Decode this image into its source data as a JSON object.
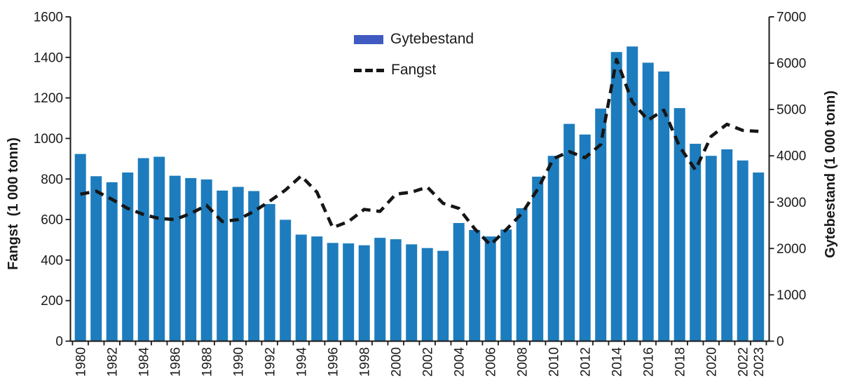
{
  "figure": {
    "background": "#ffffff",
    "axis_color": "#1a1a1a",
    "text_color": "#1a1a1a"
  },
  "chart_data": {
    "type": "bar+line",
    "title": "",
    "grid": false,
    "x": [
      1980,
      1981,
      1982,
      1983,
      1984,
      1985,
      1986,
      1987,
      1988,
      1989,
      1990,
      1991,
      1992,
      1993,
      1994,
      1995,
      1996,
      1997,
      1998,
      1999,
      2000,
      2001,
      2002,
      2003,
      2004,
      2005,
      2006,
      2007,
      2008,
      2009,
      2010,
      2011,
      2012,
      2013,
      2014,
      2015,
      2016,
      2017,
      2018,
      2019,
      2020,
      2021,
      2022,
      2023
    ],
    "series": [
      {
        "name": "Gytebestand",
        "type": "bar",
        "axis": "right",
        "color": "#1d7cbd",
        "values": [
          4040,
          3560,
          3430,
          3640,
          3950,
          3980,
          3570,
          3520,
          3490,
          3250,
          3330,
          3240,
          2960,
          2620,
          2300,
          2260,
          2120,
          2110,
          2070,
          2230,
          2200,
          2090,
          2010,
          1950,
          2550,
          2400,
          2260,
          2410,
          2870,
          3550,
          4000,
          4690,
          4460,
          5020,
          6240,
          6360,
          6010,
          5820,
          5030,
          4260,
          4000,
          4140,
          3900,
          3640
        ]
      },
      {
        "name": "Fangst",
        "type": "line",
        "style": "dashed",
        "axis": "left",
        "color": "#161616",
        "values": [
          725,
          740,
          700,
          655,
          625,
          605,
          600,
          630,
          670,
          590,
          600,
          640,
          690,
          745,
          815,
          735,
          560,
          590,
          650,
          640,
          725,
          735,
          760,
          680,
          655,
          555,
          475,
          550,
          630,
          750,
          900,
          935,
          905,
          970,
          1390,
          1180,
          1090,
          1140,
          960,
          845,
          1010,
          1070,
          1040,
          1035
        ]
      }
    ],
    "left_axis": {
      "title": "Fangst  (1 000 tonn)",
      "min": 0,
      "max": 1600,
      "tick_step": 200,
      "tick_labels": [
        "0",
        "200",
        "400",
        "600",
        "800",
        "1000",
        "1200",
        "1400",
        "1600"
      ]
    },
    "right_axis": {
      "title": "Gytebestand (1 000 tonn)",
      "min": 0,
      "max": 7000,
      "tick_step": 1000,
      "tick_labels": [
        "0",
        "1000",
        "2000",
        "3000",
        "4000",
        "5000",
        "6000",
        "7000"
      ]
    },
    "x_axis": {
      "labeled_years": [
        1980,
        1982,
        1984,
        1986,
        1988,
        1990,
        1992,
        1994,
        1996,
        1998,
        2000,
        2002,
        2004,
        2006,
        2008,
        2010,
        2012,
        2014,
        2016,
        2018,
        2020,
        2022,
        2023
      ]
    },
    "legend": {
      "position": "top-center",
      "entries": [
        {
          "label": "Gytebestand",
          "type": "bar",
          "swatch_color": "#3f5bc1"
        },
        {
          "label": "Fangst",
          "type": "dashed-line",
          "swatch_color": "#161616"
        }
      ]
    }
  }
}
